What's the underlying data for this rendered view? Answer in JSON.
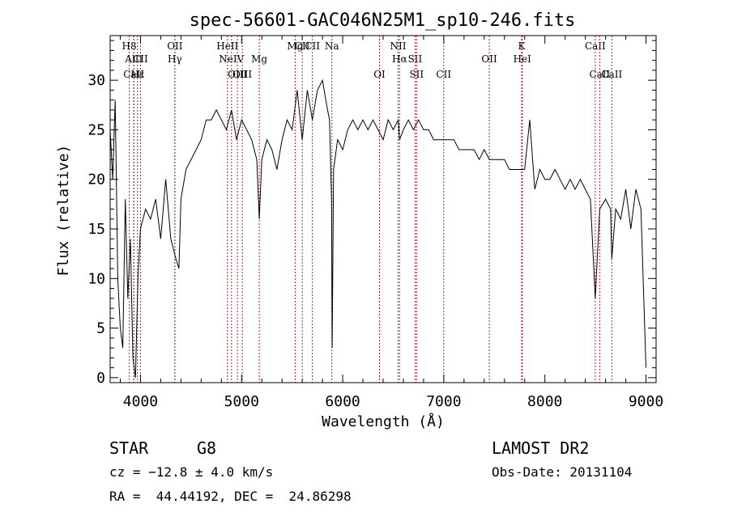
{
  "chart_data": {
    "type": "line",
    "title": "spec-56601-GAC046N25M1_sp10-246.fits",
    "xlabel": "Wavelength (Å)",
    "ylabel": "Flux (relative)",
    "xlim": [
      3700,
      9100
    ],
    "ylim": [
      -0.5,
      34.5
    ],
    "xticks": [
      4000,
      5000,
      6000,
      7000,
      8000,
      9000
    ],
    "yticks": [
      0,
      5,
      10,
      15,
      20,
      25,
      30
    ],
    "grid": false,
    "line_color": "#000000",
    "marker_color": "#b22222",
    "spectrum": {
      "x": [
        3700,
        3725,
        3750,
        3775,
        3800,
        3825,
        3850,
        3875,
        3900,
        3925,
        3950,
        3975,
        4000,
        4050,
        4100,
        4150,
        4200,
        4250,
        4300,
        4350,
        4380,
        4400,
        4450,
        4500,
        4550,
        4600,
        4650,
        4700,
        4750,
        4800,
        4850,
        4900,
        4950,
        5000,
        5050,
        5100,
        5150,
        5175,
        5200,
        5250,
        5300,
        5350,
        5400,
        5450,
        5500,
        5550,
        5600,
        5650,
        5700,
        5750,
        5800,
        5850,
        5870,
        5890,
        5896,
        5910,
        5950,
        6000,
        6050,
        6100,
        6150,
        6200,
        6250,
        6300,
        6350,
        6400,
        6450,
        6500,
        6550,
        6563,
        6600,
        6650,
        6700,
        6750,
        6800,
        6850,
        6900,
        6950,
        7000,
        7050,
        7100,
        7150,
        7200,
        7250,
        7300,
        7350,
        7400,
        7450,
        7500,
        7550,
        7600,
        7650,
        7700,
        7750,
        7800,
        7850,
        7900,
        7950,
        8000,
        8050,
        8100,
        8150,
        8200,
        8250,
        8300,
        8350,
        8400,
        8450,
        8498,
        8542,
        8600,
        8650,
        8662,
        8700,
        8750,
        8800,
        8850,
        8900,
        8950,
        9000
      ],
      "y": [
        25,
        20,
        28,
        10,
        5,
        3,
        18,
        8,
        14,
        2,
        0,
        10,
        15,
        17,
        16,
        18,
        14,
        20,
        14,
        12,
        11,
        18,
        21,
        22,
        23,
        24,
        26,
        26,
        27,
        26,
        25,
        27,
        24,
        26,
        25,
        24,
        22,
        16,
        22,
        24,
        23,
        21,
        24,
        26,
        25,
        29,
        24,
        29,
        26,
        29,
        30,
        27,
        26,
        18,
        3,
        21,
        24,
        23,
        25,
        26,
        25,
        26,
        25,
        26,
        25,
        24,
        26,
        25,
        26,
        24,
        25,
        26,
        25,
        26,
        25,
        25,
        24,
        24,
        24,
        24,
        24,
        23,
        23,
        23,
        23,
        22,
        23,
        22,
        22,
        22,
        22,
        21,
        21,
        21,
        21,
        26,
        19,
        21,
        20,
        20,
        21,
        20,
        19,
        20,
        19,
        20,
        19,
        18,
        8,
        17,
        18,
        17,
        12,
        17,
        16,
        19,
        15,
        19,
        17,
        1
      ]
    },
    "line_markers": [
      {
        "label": "H8",
        "x": 3889,
        "row": 1
      },
      {
        "label": "AlII",
        "x": 3934,
        "row": 2
      },
      {
        "label": "CaII",
        "x": 3934,
        "row": 3
      },
      {
        "label": "Hε",
        "x": 3970,
        "row": 3
      },
      {
        "label": "CII",
        "x": 4000,
        "row": 2
      },
      {
        "label": "OII",
        "x": 4340,
        "row": 1
      },
      {
        "label": "Hγ",
        "x": 4340,
        "row": 2
      },
      {
        "label": "HeII",
        "x": 4860,
        "row": 1
      },
      {
        "label": "NeIV",
        "x": 4900,
        "row": 2
      },
      {
        "label": "OIII",
        "x": 4959,
        "row": 3
      },
      {
        "label": "OIII",
        "x": 5007,
        "row": 3
      },
      {
        "label": "Mg",
        "x": 5175,
        "row": 2
      },
      {
        "label": "Mg",
        "x": 5530,
        "row": 1
      },
      {
        "label": "CII",
        "x": 5600,
        "row": 1
      },
      {
        "label": "CII",
        "x": 5700,
        "row": 1
      },
      {
        "label": "Na",
        "x": 5893,
        "row": 1
      },
      {
        "label": "OI",
        "x": 6364,
        "row": 3
      },
      {
        "label": "NII",
        "x": 6548,
        "row": 1
      },
      {
        "label": "Hα",
        "x": 6563,
        "row": 2
      },
      {
        "label": "SII",
        "x": 6716,
        "row": 2
      },
      {
        "label": "SII",
        "x": 6731,
        "row": 3
      },
      {
        "label": "CII",
        "x": 6999,
        "row": 3
      },
      {
        "label": "OII",
        "x": 7450,
        "row": 2
      },
      {
        "label": "K",
        "x": 7770,
        "row": 1
      },
      {
        "label": "HeI",
        "x": 7776,
        "row": 2
      },
      {
        "label": "CaII",
        "x": 8498,
        "row": 1
      },
      {
        "label": "CaII",
        "x": 8542,
        "row": 3
      },
      {
        "label": "CaII",
        "x": 8662,
        "row": 3
      }
    ]
  },
  "info": {
    "class": "STAR",
    "subclass": "G8",
    "survey": "LAMOST DR2",
    "cz": "cz = −12.8 ± 4.0 km/s",
    "obs_date": "Obs-Date: 20131104",
    "coords": "RA =  44.44192, DEC =  24.86298"
  }
}
